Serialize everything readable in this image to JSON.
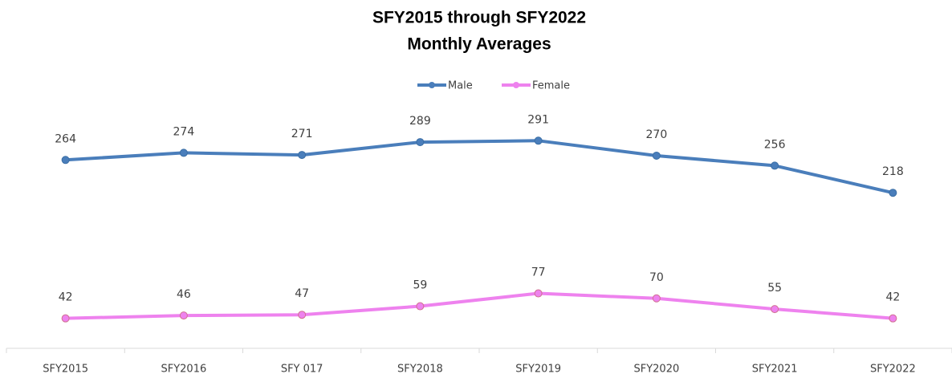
{
  "chart_data": {
    "type": "line",
    "title": "SFY2015 through SFY2022",
    "subtitle": "Monthly Averages",
    "categories": [
      "SFY2015",
      "SFY2016",
      "SFY 017",
      "SFY2018",
      "SFY2019",
      "SFY2020",
      "SFY2021",
      "SFY2022"
    ],
    "series": [
      {
        "name": "Male",
        "color": "#4a7ebb",
        "values": [
          264,
          274,
          271,
          289,
          291,
          270,
          256,
          218
        ]
      },
      {
        "name": "Female",
        "color": "#ee82ee",
        "values": [
          42,
          46,
          47,
          59,
          77,
          70,
          55,
          42
        ]
      }
    ],
    "legend": "top"
  }
}
